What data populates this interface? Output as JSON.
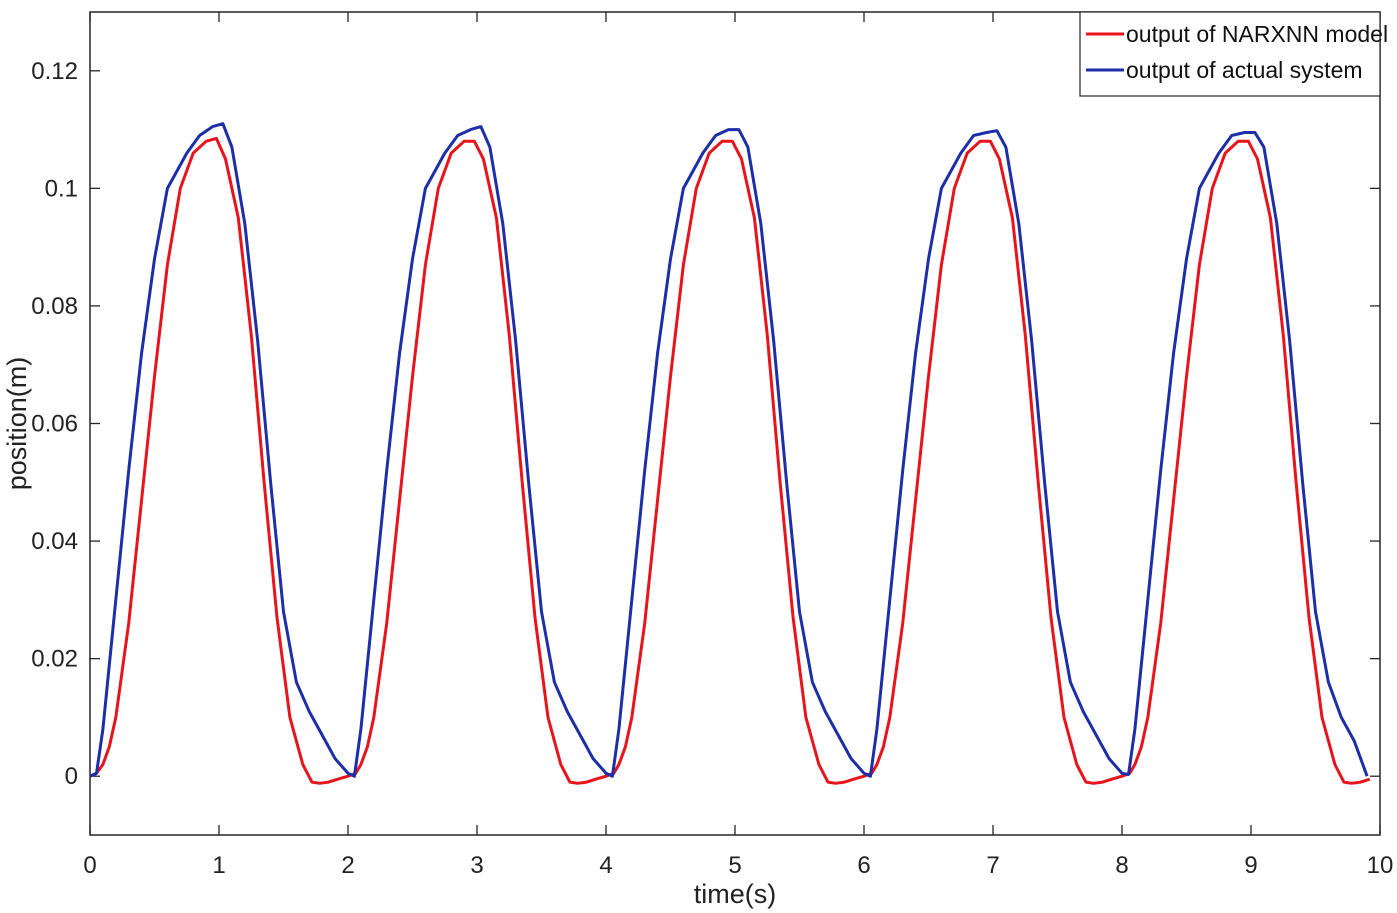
{
  "chart_data": {
    "type": "line",
    "xlabel": "time(s)",
    "ylabel": "position(m)",
    "xlim": [
      0,
      10
    ],
    "ylim": [
      -0.01,
      0.13
    ],
    "xticks": [
      0,
      1,
      2,
      3,
      4,
      5,
      6,
      7,
      8,
      9,
      10
    ],
    "xtick_labels": [
      "0",
      "1",
      "2",
      "3",
      "4",
      "5",
      "6",
      "7",
      "8",
      "9",
      "10"
    ],
    "yticks": [
      0,
      0.02,
      0.04,
      0.06,
      0.08,
      0.1,
      0.12
    ],
    "ytick_labels": [
      "0",
      "0.02",
      "0.04",
      "0.06",
      "0.08",
      "0.1",
      "0.12"
    ],
    "grid": false,
    "legend_location": "top-right",
    "series": [
      {
        "name": "output of NARXNN model",
        "color": "#e8141c",
        "x": [
          0,
          0.05,
          0.1,
          0.15,
          0.2,
          0.3,
          0.4,
          0.5,
          0.6,
          0.7,
          0.8,
          0.9,
          0.98,
          1.05,
          1.15,
          1.25,
          1.35,
          1.45,
          1.55,
          1.65,
          1.72,
          1.78,
          1.85,
          1.92,
          2.0,
          2.06,
          2.1,
          2.15,
          2.2,
          2.3,
          2.4,
          2.5,
          2.6,
          2.7,
          2.8,
          2.9,
          2.98,
          3.05,
          3.15,
          3.25,
          3.35,
          3.45,
          3.55,
          3.65,
          3.72,
          3.78,
          3.85,
          3.92,
          4.0,
          4.06,
          4.1,
          4.15,
          4.2,
          4.3,
          4.4,
          4.5,
          4.6,
          4.7,
          4.8,
          4.9,
          4.98,
          5.05,
          5.15,
          5.25,
          5.35,
          5.45,
          5.55,
          5.65,
          5.72,
          5.78,
          5.85,
          5.92,
          6.0,
          6.06,
          6.1,
          6.15,
          6.2,
          6.3,
          6.4,
          6.5,
          6.6,
          6.7,
          6.8,
          6.9,
          6.98,
          7.05,
          7.15,
          7.25,
          7.35,
          7.45,
          7.55,
          7.65,
          7.72,
          7.78,
          7.85,
          7.92,
          8.0,
          8.06,
          8.1,
          8.15,
          8.2,
          8.3,
          8.4,
          8.5,
          8.6,
          8.7,
          8.8,
          8.9,
          8.98,
          9.05,
          9.15,
          9.25,
          9.35,
          9.45,
          9.55,
          9.65,
          9.72,
          9.78,
          9.85,
          9.92
        ],
        "y": [
          0,
          0.0005,
          0.002,
          0.005,
          0.01,
          0.026,
          0.047,
          0.068,
          0.087,
          0.1,
          0.106,
          0.108,
          0.1085,
          0.105,
          0.095,
          0.075,
          0.05,
          0.027,
          0.01,
          0.002,
          -0.001,
          -0.0012,
          -0.001,
          -0.0005,
          0,
          0.0005,
          0.002,
          0.005,
          0.01,
          0.026,
          0.047,
          0.068,
          0.087,
          0.1,
          0.106,
          0.108,
          0.108,
          0.105,
          0.095,
          0.075,
          0.05,
          0.027,
          0.01,
          0.002,
          -0.001,
          -0.0012,
          -0.001,
          -0.0005,
          0,
          0.0005,
          0.002,
          0.005,
          0.01,
          0.026,
          0.047,
          0.068,
          0.087,
          0.1,
          0.106,
          0.108,
          0.108,
          0.105,
          0.095,
          0.075,
          0.05,
          0.027,
          0.01,
          0.002,
          -0.001,
          -0.0012,
          -0.001,
          -0.0005,
          0,
          0.0005,
          0.002,
          0.005,
          0.01,
          0.026,
          0.047,
          0.068,
          0.087,
          0.1,
          0.106,
          0.108,
          0.108,
          0.105,
          0.095,
          0.075,
          0.05,
          0.027,
          0.01,
          0.002,
          -0.001,
          -0.0012,
          -0.001,
          -0.0005,
          0,
          0.0005,
          0.002,
          0.005,
          0.01,
          0.026,
          0.047,
          0.068,
          0.087,
          0.1,
          0.106,
          0.108,
          0.108,
          0.105,
          0.095,
          0.075,
          0.05,
          0.027,
          0.01,
          0.002,
          -0.001,
          -0.0012,
          -0.001,
          -0.0005
        ]
      },
      {
        "name": "output of actual system",
        "color": "#1c2fa8",
        "x": [
          0,
          0.05,
          0.1,
          0.2,
          0.3,
          0.4,
          0.5,
          0.6,
          0.65,
          0.75,
          0.85,
          0.95,
          1.03,
          1.1,
          1.2,
          1.3,
          1.4,
          1.5,
          1.6,
          1.7,
          1.8,
          1.9,
          2.0,
          2.05,
          2.1,
          2.2,
          2.3,
          2.4,
          2.5,
          2.6,
          2.65,
          2.75,
          2.85,
          2.95,
          3.03,
          3.1,
          3.2,
          3.3,
          3.4,
          3.5,
          3.6,
          3.7,
          3.8,
          3.9,
          4.0,
          4.05,
          4.1,
          4.2,
          4.3,
          4.4,
          4.5,
          4.6,
          4.65,
          4.75,
          4.85,
          4.95,
          5.03,
          5.1,
          5.2,
          5.3,
          5.4,
          5.5,
          5.6,
          5.7,
          5.8,
          5.9,
          6.0,
          6.05,
          6.1,
          6.2,
          6.3,
          6.4,
          6.5,
          6.6,
          6.65,
          6.75,
          6.85,
          6.95,
          7.03,
          7.1,
          7.2,
          7.3,
          7.4,
          7.5,
          7.6,
          7.7,
          7.8,
          7.9,
          8.0,
          8.05,
          8.1,
          8.2,
          8.3,
          8.4,
          8.5,
          8.6,
          8.65,
          8.75,
          8.85,
          8.95,
          9.03,
          9.1,
          9.2,
          9.3,
          9.4,
          9.5,
          9.6,
          9.7,
          9.8,
          9.9
        ],
        "y": [
          0,
          0.0005,
          0.008,
          0.03,
          0.052,
          0.072,
          0.088,
          0.1,
          0.102,
          0.106,
          0.109,
          0.1105,
          0.111,
          0.107,
          0.094,
          0.074,
          0.05,
          0.028,
          0.016,
          0.011,
          0.007,
          0.003,
          0.0005,
          0,
          0.008,
          0.03,
          0.052,
          0.072,
          0.088,
          0.1,
          0.102,
          0.106,
          0.109,
          0.11,
          0.1105,
          0.107,
          0.094,
          0.074,
          0.05,
          0.028,
          0.016,
          0.011,
          0.007,
          0.003,
          0.0005,
          0,
          0.008,
          0.03,
          0.052,
          0.072,
          0.088,
          0.1,
          0.102,
          0.106,
          0.109,
          0.11,
          0.11,
          0.107,
          0.094,
          0.074,
          0.05,
          0.028,
          0.016,
          0.011,
          0.007,
          0.003,
          0.0005,
          0,
          0.008,
          0.03,
          0.052,
          0.072,
          0.088,
          0.1,
          0.102,
          0.106,
          0.109,
          0.1095,
          0.1098,
          0.107,
          0.094,
          0.074,
          0.05,
          0.028,
          0.016,
          0.011,
          0.007,
          0.003,
          0.0005,
          0.0003,
          0.008,
          0.03,
          0.052,
          0.072,
          0.088,
          0.1,
          0.102,
          0.106,
          0.109,
          0.1095,
          0.1095,
          0.107,
          0.094,
          0.074,
          0.05,
          0.028,
          0.016,
          0.01,
          0.006,
          0
        ]
      }
    ]
  }
}
